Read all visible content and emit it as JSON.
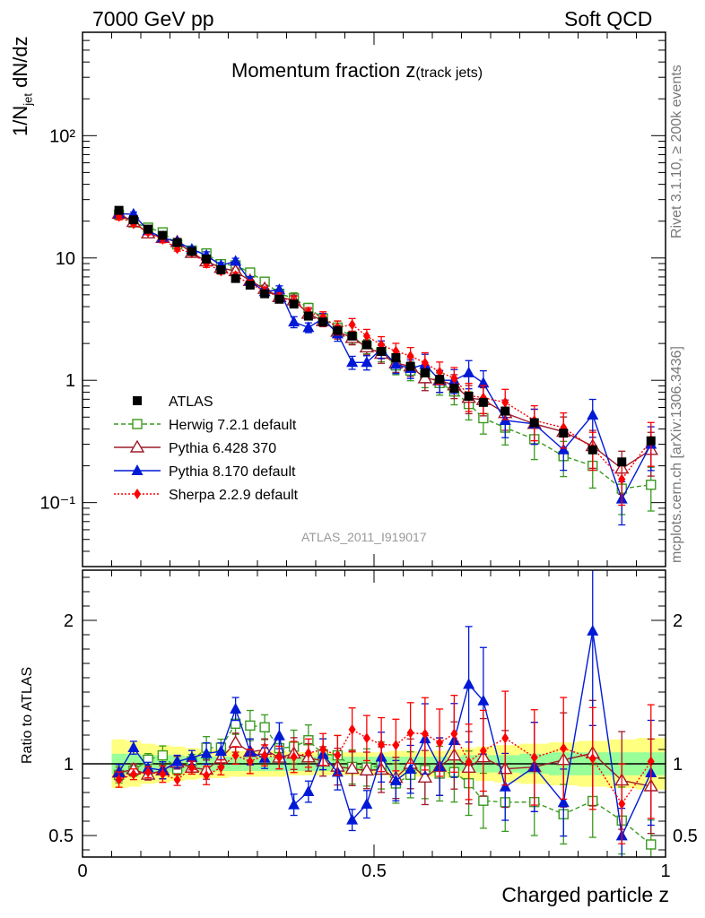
{
  "header": {
    "left": "7000 GeV pp",
    "right": "Soft QCD"
  },
  "side_labels": {
    "rivet": "Rivet 3.1.10, ≥ 200k events",
    "mcplots": "mcplots.cern.ch [arXiv:1306.3436]"
  },
  "watermark": "ATLAS_2011_I919017",
  "colors": {
    "data": "#000000",
    "herwig": "#3a9a20",
    "pythia6": "#9e1b2b",
    "pythia8": "#0019d6",
    "sherpa": "#ff0000",
    "band_inner": "#99ff99",
    "band_outer": "#ffff80"
  },
  "chart_data": {
    "type": "line",
    "title": "Momentum fraction z",
    "title_suffix": "(track jets)",
    "xlabel": "Charged particle z",
    "ylabel": "1/N",
    "ylabel_sub": "jet",
    "ylabel_suffix": " dN/dz",
    "ratio_ylabel": "Ratio to ATLAS",
    "xlim": [
      0,
      1
    ],
    "ylim_main": [
      0.03,
      700
    ],
    "ylim_ratio": [
      0.35,
      2.35
    ],
    "x_ticks": [
      "0",
      "0.5",
      "1"
    ],
    "y_ticks_main": [
      "10⁻¹",
      "1",
      "10",
      "10²"
    ],
    "y_ticks_ratio": [
      "0.5",
      "1",
      "2"
    ],
    "legend_position": "lower-left",
    "x": [
      0.0625,
      0.0875,
      0.1125,
      0.1375,
      0.1625,
      0.1875,
      0.2125,
      0.2375,
      0.2625,
      0.2875,
      0.3125,
      0.3375,
      0.3625,
      0.3875,
      0.4125,
      0.4375,
      0.4625,
      0.4875,
      0.5125,
      0.5375,
      0.5625,
      0.5875,
      0.6125,
      0.6375,
      0.6625,
      0.6875,
      0.725,
      0.775,
      0.825,
      0.875,
      0.925,
      0.975
    ],
    "series": [
      {
        "name": "ATLAS",
        "marker": "square-filled",
        "values": [
          24.5,
          20.5,
          17.2,
          15.3,
          13.4,
          11.3,
          9.8,
          8.0,
          6.8,
          6.0,
          5.1,
          4.6,
          4.2,
          3.35,
          3.0,
          2.55,
          2.3,
          1.95,
          1.72,
          1.53,
          1.3,
          1.15,
          1.02,
          0.86,
          0.74,
          0.66,
          0.56,
          0.45,
          0.37,
          0.27,
          0.215,
          0.32
        ]
      },
      {
        "name": "Herwig 7.2.1 default",
        "marker": "square-open",
        "values": [
          22.6,
          19.5,
          17.7,
          16.2,
          12.9,
          11.5,
          10.9,
          8.9,
          8.7,
          7.6,
          6.4,
          5.1,
          4.7,
          3.9,
          3.2,
          2.7,
          2.25,
          1.9,
          1.7,
          1.32,
          1.2,
          1.1,
          0.95,
          0.81,
          0.64,
          0.49,
          0.41,
          0.33,
          0.24,
          0.2,
          0.13,
          0.14
        ]
      },
      {
        "name": "Pythia 6.428 370",
        "marker": "triangle-open",
        "values": [
          23.0,
          19.7,
          15.9,
          14.6,
          13.5,
          11.0,
          9.4,
          8.3,
          7.8,
          6.5,
          5.6,
          4.8,
          4.5,
          3.5,
          3.05,
          2.5,
          2.22,
          1.86,
          1.65,
          1.38,
          1.3,
          1.04,
          1.0,
          0.91,
          0.72,
          0.69,
          0.54,
          0.44,
          0.38,
          0.29,
          0.19,
          0.27
        ]
      },
      {
        "name": "Pythia 8.170 default",
        "marker": "triangle-filled",
        "values": [
          23.0,
          22.8,
          16.7,
          14.6,
          13.6,
          11.8,
          10.5,
          8.7,
          9.4,
          6.5,
          5.3,
          5.5,
          3.0,
          2.7,
          3.2,
          2.4,
          1.4,
          1.4,
          1.8,
          1.35,
          1.25,
          1.35,
          1.0,
          1.0,
          1.15,
          0.95,
          0.47,
          0.44,
          0.27,
          0.52,
          0.107,
          0.3
        ]
      },
      {
        "name": "Sherpa 2.2.9 default",
        "marker": "diamond-filled",
        "values": [
          21.8,
          19.0,
          16.2,
          14.2,
          11.9,
          11.0,
          9.0,
          7.8,
          7.2,
          6.1,
          5.4,
          4.8,
          4.4,
          3.6,
          3.3,
          2.7,
          2.85,
          2.3,
          1.95,
          1.73,
          1.58,
          1.39,
          1.17,
          1.04,
          0.75,
          0.72,
          0.66,
          0.47,
          0.41,
          0.28,
          0.155,
          0.325
        ]
      }
    ],
    "band_inner_halfwidth": [
      0.07,
      0.07,
      0.06,
      0.06,
      0.06,
      0.05,
      0.05,
      0.05,
      0.05,
      0.05,
      0.05,
      0.05,
      0.05,
      0.05,
      0.05,
      0.05,
      0.05,
      0.05,
      0.05,
      0.05,
      0.05,
      0.05,
      0.05,
      0.05,
      0.06,
      0.06,
      0.06,
      0.07,
      0.08,
      0.08,
      0.08,
      0.08
    ],
    "band_outer_halfwidth": [
      0.17,
      0.16,
      0.14,
      0.13,
      0.12,
      0.11,
      0.1,
      0.1,
      0.09,
      0.09,
      0.09,
      0.09,
      0.08,
      0.08,
      0.08,
      0.08,
      0.08,
      0.08,
      0.08,
      0.09,
      0.09,
      0.09,
      0.09,
      0.1,
      0.11,
      0.12,
      0.13,
      0.14,
      0.15,
      0.16,
      0.17,
      0.18
    ]
  }
}
